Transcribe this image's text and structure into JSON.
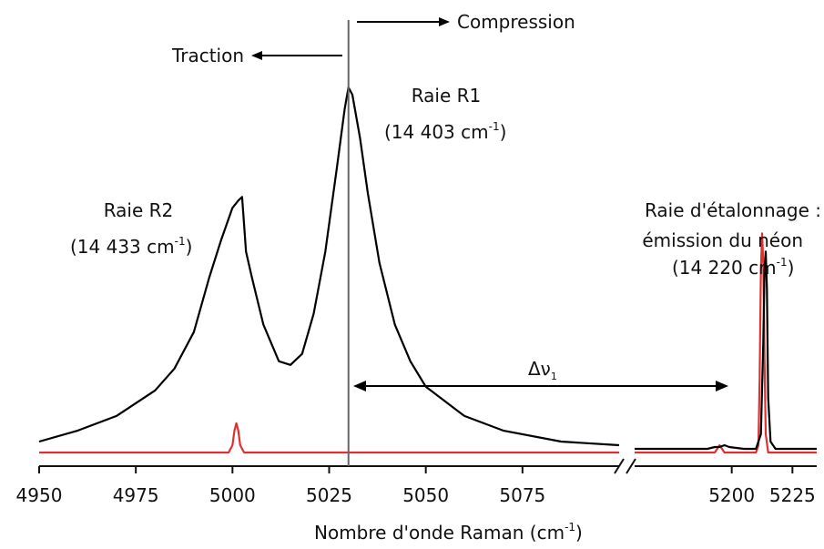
{
  "chart_data": {
    "type": "line",
    "title": "",
    "xlabel": "Nombre d'onde Raman (cm",
    "xlabel_sup": "-1",
    "xlabel_end": ")",
    "axis_break": true,
    "xlim_left": [
      4950,
      5100
    ],
    "xlim_right": [
      5160,
      5235
    ],
    "xticks_left": [
      4950,
      4975,
      5000,
      5025,
      5050,
      5075
    ],
    "xticks_right": [
      5200,
      5225
    ],
    "reference_line_x": 5030,
    "series": [
      {
        "color": "#000000",
        "left": {
          "x": [
            4950,
            4960,
            4970,
            4980,
            4985,
            4990,
            4994,
            4997,
            5000,
            5001.5,
            5002.5,
            5003.5,
            5005,
            5008,
            5012,
            5015,
            5018,
            5021,
            5024,
            5027,
            5029,
            5030,
            5031,
            5033,
            5035,
            5038,
            5042,
            5046,
            5050,
            5060,
            5070,
            5085,
            5100
          ],
          "y": [
            0.03,
            0.06,
            0.1,
            0.17,
            0.23,
            0.33,
            0.48,
            0.58,
            0.67,
            0.69,
            0.7,
            0.55,
            0.48,
            0.35,
            0.25,
            0.24,
            0.27,
            0.38,
            0.55,
            0.78,
            0.94,
            1.0,
            0.98,
            0.86,
            0.71,
            0.52,
            0.35,
            0.25,
            0.18,
            0.1,
            0.06,
            0.03,
            0.02
          ]
        },
        "right": {
          "x": [
            5160,
            5190,
            5193,
            5195,
            5197,
            5199,
            5205,
            5210,
            5212,
            5213,
            5213.5,
            5214,
            5214.5,
            5215,
            5216,
            5218,
            5235
          ],
          "y": [
            0.01,
            0.01,
            0.015,
            0.015,
            0.02,
            0.015,
            0.01,
            0.01,
            0.05,
            0.3,
            0.5,
            0.55,
            0.45,
            0.15,
            0.03,
            0.01,
            0.01
          ]
        }
      },
      {
        "color": "#e03030",
        "left": {
          "x": [
            4950,
            4995,
            4999,
            5000,
            5000.5,
            5001,
            5001.5,
            5002,
            5003,
            5007,
            5100
          ],
          "y": [
            0.0,
            0.0,
            0.0,
            0.02,
            0.06,
            0.08,
            0.06,
            0.02,
            0.0,
            0.0,
            0.0
          ]
        },
        "right": {
          "x": [
            5160,
            5193,
            5194,
            5195,
            5196,
            5197,
            5210,
            5211,
            5211.5,
            5212,
            5212.5,
            5213,
            5213.5,
            5214,
            5215,
            5235
          ],
          "y": [
            0.0,
            0.0,
            0.01,
            0.02,
            0.01,
            0.0,
            0.0,
            0.02,
            0.2,
            0.5,
            0.6,
            0.52,
            0.25,
            0.05,
            0.0,
            0.0
          ]
        }
      }
    ],
    "annotations": {
      "compression": "Compression",
      "traction": "Traction",
      "r1_name": "Raie R1",
      "r1_value": "(14 403 cm",
      "r1_value_sup": "-1",
      "r1_value_end": ")",
      "r2_name": "Raie R2",
      "r2_value": "(14 433 cm",
      "r2_value_sup": "-1",
      "r2_value_end": ")",
      "ref_line1": "Raie d'étalonnage :",
      "ref_line2": "émission du néon",
      "ref_value": "(14 220 cm",
      "ref_value_sup": "-1",
      "ref_value_end": ")",
      "delta_symbol": "Δν",
      "delta_sub": "1"
    }
  }
}
